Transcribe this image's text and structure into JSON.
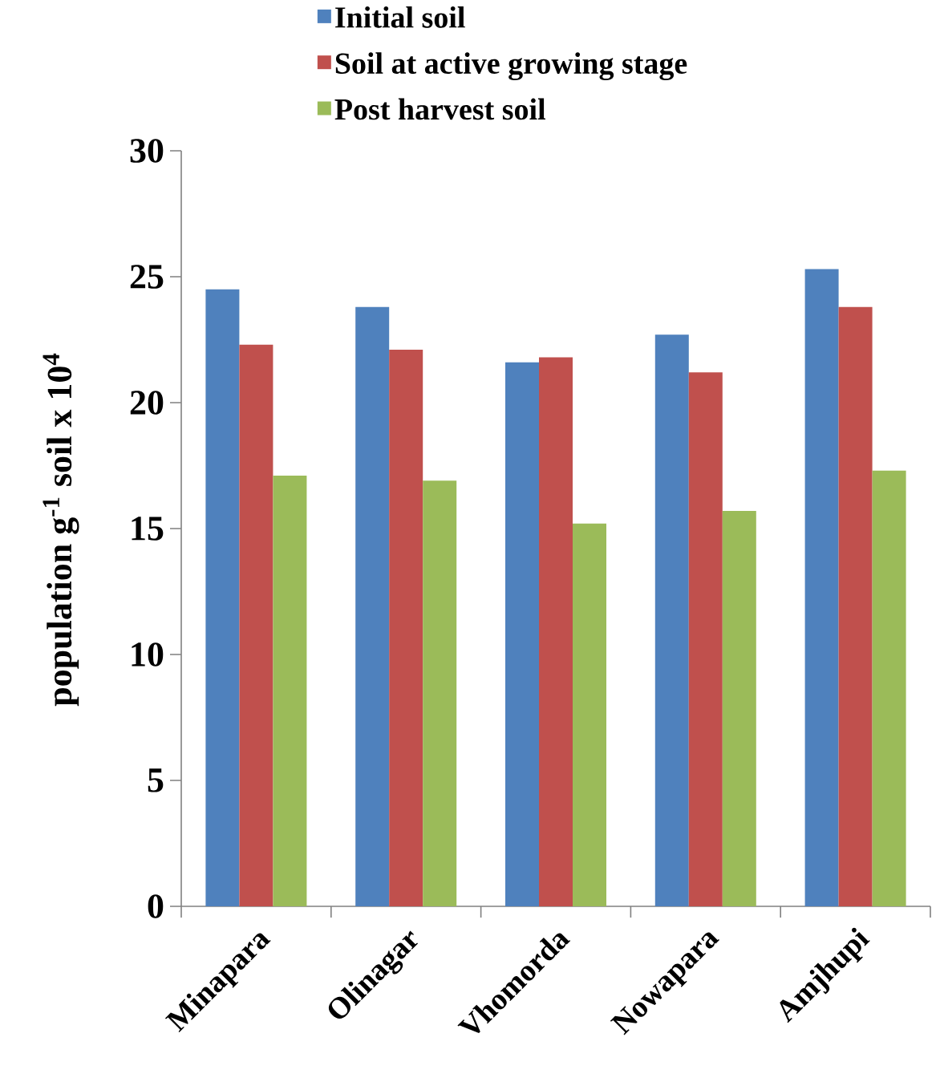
{
  "chart_data": {
    "type": "bar",
    "ylabel": "population g$^{-1}$ soil x 10$^{4}$",
    "categories": [
      "Minapara",
      "Olinagar",
      "Vhomorda",
      "Nowapara",
      "Amjhupi"
    ],
    "series": [
      {
        "name": "Initial soil",
        "color": "#4f81bd",
        "values": [
          24.5,
          23.8,
          21.6,
          22.7,
          25.3
        ]
      },
      {
        "name": "Soil at active growing stage",
        "color": "#c0504d",
        "values": [
          22.3,
          22.1,
          21.8,
          21.2,
          23.8
        ]
      },
      {
        "name": "Post harvest soil",
        "color": "#9bbb59",
        "values": [
          17.1,
          16.9,
          15.2,
          15.7,
          17.3
        ]
      }
    ],
    "ylim": [
      0,
      30
    ],
    "yticks": [
      0,
      5,
      10,
      15,
      20,
      25,
      30
    ],
    "grid": false,
    "legend": "top"
  }
}
